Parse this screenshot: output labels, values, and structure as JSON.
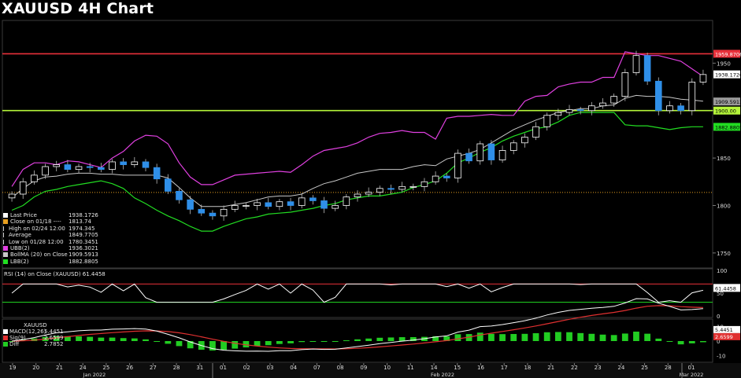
{
  "title": "XAUUSD 4H Chart",
  "colors": {
    "background": "#000000",
    "resistance": "#e8303a",
    "support": "#b5f53a",
    "upper_band": "#e040e0",
    "lower_band": "#22dd22",
    "middle_band": "#c8c8c8",
    "bull_candle": "#ffffff",
    "bear_candle": "#2f8fe8",
    "rsi_line": "#ffffff",
    "macd_line": "#ffffff",
    "signal_line": "#e03030",
    "hist": "#22cc22"
  },
  "legend": [
    {
      "label": "Last Price",
      "value": "1938.1726",
      "color": "#ffffff",
      "icon": "square"
    },
    {
      "label": "Close on 01/18 ----",
      "value": "1813.74",
      "color": "#e8a020",
      "icon": "square"
    },
    {
      "label": "High on 02/24 12:00",
      "value": "1974.345",
      "color": "#cccccc",
      "icon": "high-marker"
    },
    {
      "label": "Average",
      "value": "1849.7705",
      "color": "#cccccc",
      "icon": "average-marker"
    },
    {
      "label": "Low on 01/28 12:00",
      "value": "1780.3451",
      "color": "#cccccc",
      "icon": "low-marker"
    },
    {
      "label": "UBB(2)",
      "value": "1936.3021",
      "color": "#e040e0",
      "icon": "square"
    },
    {
      "label": "BollMA (20)  on Close",
      "value": "1909.5913",
      "color": "#c8c8c8",
      "icon": "square"
    },
    {
      "label": "LBB(2)",
      "value": "1882.8805",
      "color": "#22dd22",
      "icon": "square"
    }
  ],
  "price_tags": {
    "resistance": "1959.8706",
    "last": "1938.1726",
    "ma": "1909.5913",
    "support": "1900.00",
    "lbb": "1882.8805"
  },
  "rsi": {
    "label": "RSI (14)  on Close (XAUUSD) 61.4458",
    "tag": "61.4458",
    "y_ticks": [
      "100",
      "50",
      "0"
    ]
  },
  "macd": {
    "title": "XAUUSD",
    "legend": [
      {
        "label": "MACD(12,26)",
        "value": "5.4451",
        "color": "#ffffff"
      },
      {
        "label": "Sig(9)",
        "value": "2.6599",
        "color": "#e03030"
      },
      {
        "label": "Diff",
        "value": "2.7852",
        "color": "#22cc22"
      }
    ],
    "tags": {
      "macd": "5.4451",
      "sig": "2.6599"
    },
    "y_ticks": [
      "10",
      "0",
      "-10"
    ]
  },
  "x_axis": {
    "day_labels": [
      "19",
      "20",
      "21",
      "24",
      "25",
      "26",
      "27",
      "28",
      "31",
      "01",
      "02",
      "03",
      "04",
      "07",
      "08",
      "09",
      "10",
      "11",
      "14",
      "15",
      "16",
      "17",
      "18",
      "21",
      "22",
      "23",
      "24",
      "25",
      "28",
      "01"
    ],
    "month_labels": [
      "Jan 2022",
      "Feb 2022",
      "Mar 2022"
    ]
  },
  "chart_data": {
    "type": "candlestick",
    "title": "XAUUSD 4H Chart",
    "ylim": [
      1735,
      1995
    ],
    "y_ticks": [
      1750,
      1800,
      1850,
      1900,
      1950
    ],
    "horizontal_lines": [
      {
        "value": 1959.8706,
        "style": "solid"
      },
      {
        "value": 1900.0,
        "style": "solid"
      },
      {
        "value": 1813.74,
        "style": "dotted"
      }
    ],
    "series": [
      {
        "name": "UBB(2)",
        "values": [
          1820,
          1838,
          1845,
          1845,
          1843,
          1847,
          1846,
          1843,
          1840,
          1850,
          1857,
          1868,
          1874,
          1873,
          1865,
          1845,
          1830,
          1822,
          1822,
          1827,
          1832,
          1833,
          1834,
          1835,
          1836,
          1835,
          1843,
          1852,
          1858,
          1860,
          1862,
          1866,
          1872,
          1876,
          1877,
          1879,
          1877,
          1877,
          1870,
          1892,
          1894,
          1894,
          1895,
          1896,
          1895,
          1895,
          1910,
          1915,
          1916,
          1925,
          1928,
          1930,
          1930,
          1935,
          1935,
          1962,
          1960,
          1958,
          1958,
          1955,
          1952,
          1944,
          1936
        ]
      },
      {
        "name": "BollMA (20)",
        "values": [
          1808,
          1818,
          1826,
          1830,
          1831,
          1833,
          1834,
          1834,
          1833,
          1833,
          1832,
          1832,
          1832,
          1832,
          1829,
          1819,
          1808,
          1799,
          1799,
          1799,
          1801,
          1803,
          1806,
          1809,
          1810,
          1810,
          1812,
          1818,
          1823,
          1826,
          1830,
          1834,
          1836,
          1838,
          1838,
          1838,
          1841,
          1843,
          1842,
          1849,
          1852,
          1855,
          1859,
          1866,
          1873,
          1880,
          1885,
          1890,
          1894,
          1898,
          1900,
          1902,
          1902,
          1905,
          1906,
          1913,
          1916,
          1915,
          1915,
          1914,
          1912,
          1911,
          1910
        ]
      },
      {
        "name": "LBB(2)",
        "values": [
          1795,
          1800,
          1809,
          1815,
          1817,
          1820,
          1822,
          1824,
          1826,
          1823,
          1818,
          1808,
          1802,
          1795,
          1789,
          1784,
          1778,
          1773,
          1773,
          1778,
          1782,
          1786,
          1788,
          1791,
          1792,
          1793,
          1795,
          1797,
          1800,
          1802,
          1806,
          1808,
          1810,
          1810,
          1812,
          1814,
          1819,
          1822,
          1826,
          1834,
          1845,
          1850,
          1856,
          1861,
          1868,
          1873,
          1877,
          1881,
          1883,
          1888,
          1895,
          1898,
          1898,
          1898,
          1898,
          1885,
          1884,
          1884,
          1882,
          1880,
          1882,
          1883,
          1883
        ]
      },
      {
        "name": "Close",
        "values": [
          1812,
          1825,
          1832,
          1841,
          1843,
          1838,
          1841,
          1840,
          1838,
          1846,
          1843,
          1846,
          1840,
          1828,
          1815,
          1806,
          1796,
          1792,
          1789,
          1796,
          1800,
          1800,
          1803,
          1799,
          1804,
          1800,
          1808,
          1805,
          1797,
          1800,
          1809,
          1812,
          1814,
          1818,
          1817,
          1820,
          1820,
          1825,
          1831,
          1829,
          1855,
          1847,
          1865,
          1848,
          1858,
          1866,
          1872,
          1883,
          1895,
          1898,
          1901,
          1900,
          1905,
          1908,
          1915,
          1940,
          1958,
          1931,
          1900,
          1905,
          1900,
          1930,
          1938
        ]
      }
    ]
  }
}
